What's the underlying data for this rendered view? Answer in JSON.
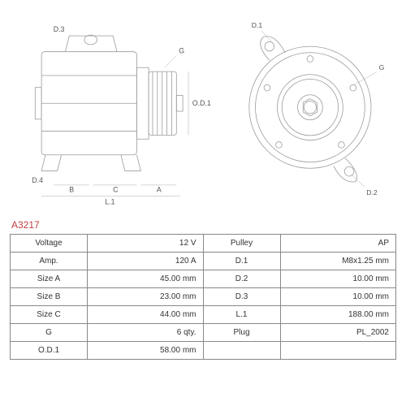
{
  "part_number": "A3217",
  "diagram": {
    "left_labels": {
      "d3": "D.3",
      "d4": "D.4",
      "b": "B",
      "c": "C",
      "a": "A",
      "l1": "L.1",
      "g": "G",
      "od1": "O.D.1"
    },
    "right_labels": {
      "d1": "D.1",
      "d2": "D.2",
      "g": "G"
    },
    "stroke_color": "#888888",
    "stroke_width": 0.8
  },
  "table": {
    "rows": [
      {
        "l1": "Voltage",
        "v1": "12 V",
        "l2": "Pulley",
        "v2": "AP"
      },
      {
        "l1": "Amp.",
        "v1": "120 A",
        "l2": "D.1",
        "v2": "M8x1.25 mm"
      },
      {
        "l1": "Size A",
        "v1": "45.00 mm",
        "l2": "D.2",
        "v2": "10.00 mm"
      },
      {
        "l1": "Size B",
        "v1": "23.00 mm",
        "l2": "D.3",
        "v2": "10.00 mm"
      },
      {
        "l1": "Size C",
        "v1": "44.00 mm",
        "l2": "L.1",
        "v2": "188.00 mm"
      },
      {
        "l1": "G",
        "v1": "6 qty.",
        "l2": "Plug",
        "v2": "PL_2002"
      },
      {
        "l1": "O.D.1",
        "v1": "58.00 mm",
        "l2": "",
        "v2": ""
      }
    ],
    "border_color": "#888888"
  }
}
